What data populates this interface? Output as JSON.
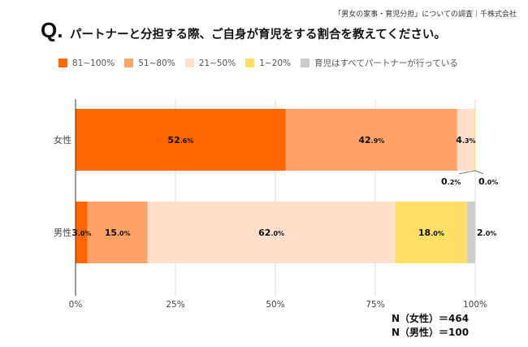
{
  "source": "「男女の家事・育児分担」についての調査｜千株式会社",
  "question_mark": "Q.",
  "question": "パートナーと分担する際、ご自身が育児をする割合を教えてください。",
  "sample_sizes": [
    "N（女性）＝464",
    "N（男性）＝100"
  ],
  "chart_data": {
    "type": "bar",
    "orientation": "horizontal",
    "stacked": true,
    "categories": [
      "女性",
      "男性"
    ],
    "series": [
      {
        "name": "81~100%",
        "color": "#ff6600",
        "values": [
          52.6,
          3.0
        ]
      },
      {
        "name": "51~80%",
        "color": "#ffa366",
        "values": [
          42.9,
          15.0
        ]
      },
      {
        "name": "21~50%",
        "color": "#ffe0cc",
        "values": [
          4.3,
          62.0
        ]
      },
      {
        "name": "1~20%",
        "color": "#ffdf66",
        "values": [
          0.2,
          18.0
        ]
      },
      {
        "name": "育児はすべてパートナーが行っている",
        "color": "#cccccc",
        "values": [
          0.0,
          2.0
        ]
      }
    ],
    "xlim": [
      0,
      100
    ],
    "xticks": [
      "0%",
      "25%",
      "50%",
      "75%",
      "100%"
    ],
    "unit": "%",
    "legend_position": "top"
  }
}
